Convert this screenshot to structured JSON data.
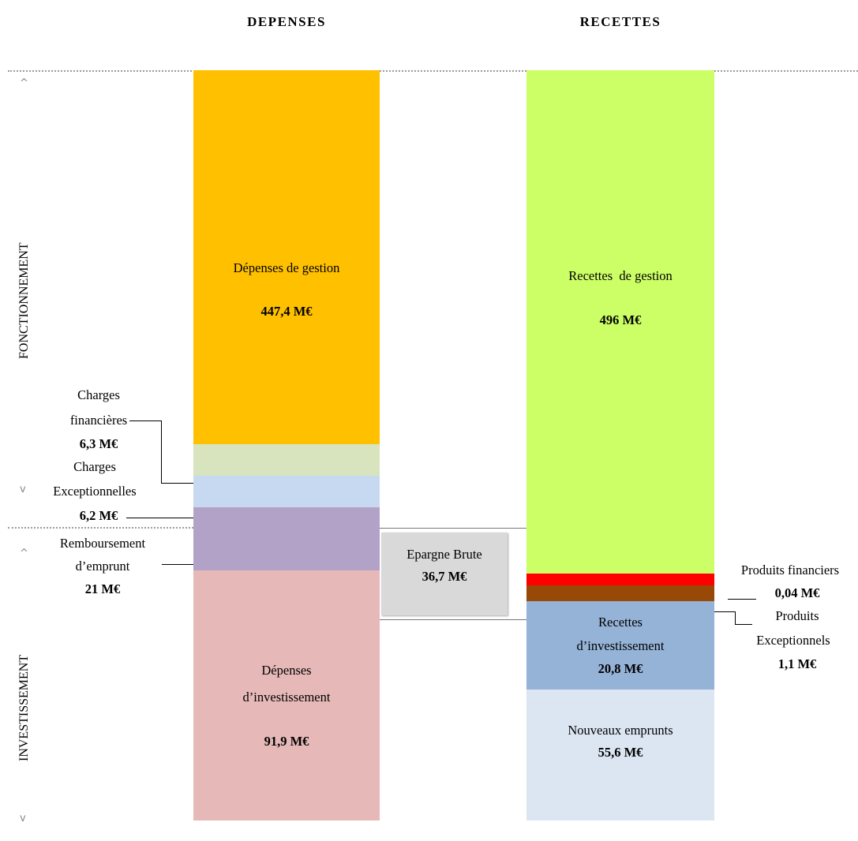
{
  "headers": {
    "left": "DEPENSES",
    "right": "RECETTES"
  },
  "side_labels": {
    "top": "FONCTIONNEMENT",
    "bottom": "INVESTISSEMENT"
  },
  "carets": {
    "up": "^",
    "down": "v"
  },
  "colors": {
    "depenses_gestion": "#FFC000",
    "charges_financieres": "#D7E4BD",
    "charges_exceptionnelles": "#C6D9F1",
    "remboursement": "#B3A2C7",
    "depenses_investissement": "#E6B9B8",
    "epargne": "#D9D9D9",
    "recettes_gestion": "#CCFF66",
    "produits_financiers": "#FF0000",
    "produits_exceptionnels": "#984807",
    "recettes_investissement": "#95B3D7",
    "nouveaux_emprunts": "#DCE6F2"
  },
  "depenses": {
    "gestion": {
      "label": "Dépenses de gestion",
      "value": "447,4 M€"
    },
    "financieres": {
      "label_line1": "Charges",
      "label_line2": "financières",
      "value": "6,3 M€"
    },
    "exceptionnelles": {
      "label_line1": "Charges",
      "label_line2": "Exceptionnelles",
      "value": "6,2 M€"
    },
    "remboursement": {
      "label_line1": "Remboursement",
      "label_line2": "d’emprunt",
      "value": "21 M€"
    },
    "investissement": {
      "label_line1": "Dépenses",
      "label_line2": "d’investissement",
      "value": "91,9 M€"
    }
  },
  "epargne": {
    "label": "Epargne Brute",
    "value": "36,7 M€"
  },
  "recettes": {
    "gestion": {
      "label": "Recettes  de gestion",
      "value": "496 M€"
    },
    "financiers": {
      "label": "Produits financiers",
      "value": "0,04 M€"
    },
    "exceptionnels": {
      "label_line1": "Produits",
      "label_line2": "Exceptionnels",
      "value": "1,1 M€"
    },
    "investissement": {
      "label_line1": "Recettes",
      "label_line2": "d’investissement",
      "value": "20,8 M€"
    },
    "emprunts": {
      "label": "Nouveaux emprunts",
      "value": "55,6 M€"
    }
  }
}
